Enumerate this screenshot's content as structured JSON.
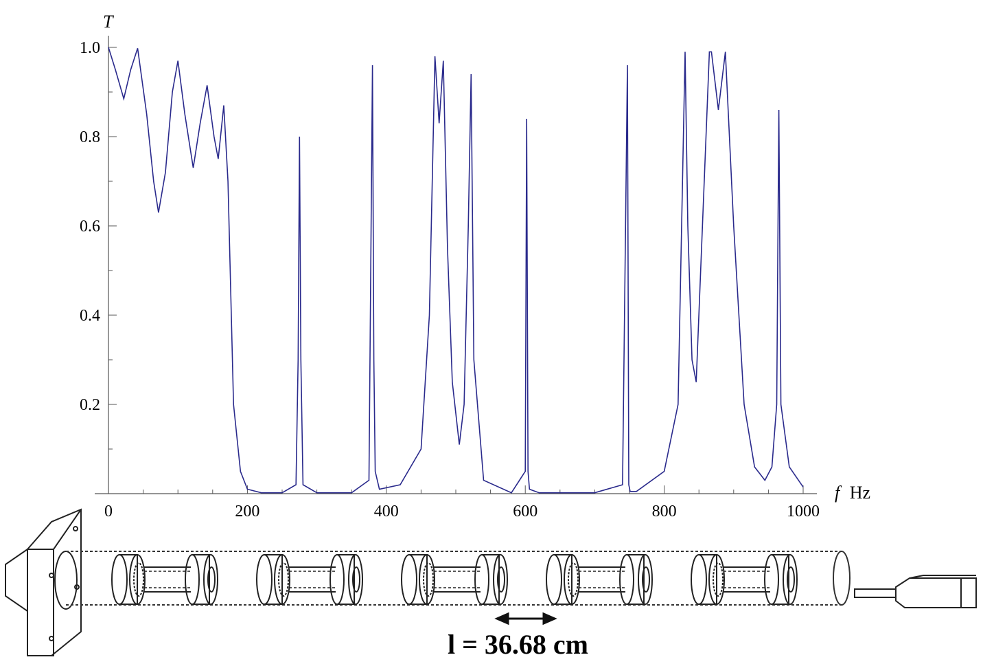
{
  "chart_data": {
    "type": "line",
    "title": "",
    "xlabel_italic": "f",
    "xlabel_unit": "Hz",
    "ylabel": "T",
    "xlim": [
      0,
      1000
    ],
    "ylim": [
      0,
      1.0
    ],
    "x_ticks": [
      0,
      200,
      400,
      600,
      800,
      1000
    ],
    "x_tick_labels": [
      "0",
      "200",
      "400",
      "600",
      "800",
      "1000"
    ],
    "y_ticks": [
      0.2,
      0.4,
      0.6,
      0.8,
      1.0
    ],
    "y_tick_labels": [
      "0.2",
      "0.4",
      "0.6",
      "0.8",
      "1.0"
    ],
    "grid": false,
    "series": [
      {
        "color": "#2a2a8c",
        "x": [
          0,
          10,
          22,
          32,
          42,
          55,
          65,
          72,
          82,
          92,
          100,
          110,
          122,
          132,
          142,
          152,
          158,
          166,
          172,
          180,
          190,
          200,
          220,
          250,
          270,
          273,
          275,
          277,
          280,
          300,
          350,
          375,
          380,
          382,
          384,
          390,
          420,
          450,
          462,
          470,
          476,
          482,
          488,
          495,
          505,
          512,
          518,
          522,
          526,
          540,
          580,
          600,
          602,
          604,
          606,
          620,
          700,
          740,
          747,
          749,
          751,
          760,
          800,
          820,
          830,
          834,
          840,
          846,
          855,
          865,
          868,
          878,
          888,
          900,
          915,
          930,
          945,
          955,
          962,
          965,
          968,
          980,
          1000
        ],
        "y": [
          1.0,
          0.95,
          0.885,
          0.95,
          0.998,
          0.85,
          0.7,
          0.63,
          0.72,
          0.9,
          0.97,
          0.85,
          0.73,
          0.83,
          0.915,
          0.8,
          0.75,
          0.87,
          0.7,
          0.2,
          0.05,
          0.01,
          0.002,
          0.002,
          0.02,
          0.3,
          0.8,
          0.3,
          0.02,
          0.002,
          0.002,
          0.03,
          0.96,
          0.3,
          0.05,
          0.01,
          0.02,
          0.1,
          0.4,
          0.98,
          0.83,
          0.97,
          0.55,
          0.25,
          0.11,
          0.2,
          0.6,
          0.94,
          0.3,
          0.03,
          0.002,
          0.05,
          0.84,
          0.05,
          0.01,
          0.002,
          0.002,
          0.02,
          0.96,
          0.02,
          0.005,
          0.005,
          0.05,
          0.2,
          0.99,
          0.6,
          0.3,
          0.25,
          0.6,
          0.99,
          0.99,
          0.86,
          0.99,
          0.6,
          0.2,
          0.06,
          0.03,
          0.06,
          0.2,
          0.86,
          0.2,
          0.06,
          0.015
        ]
      }
    ]
  },
  "apparatus": {
    "caption": "l = 36.68 cm",
    "resonator_count": 5
  }
}
